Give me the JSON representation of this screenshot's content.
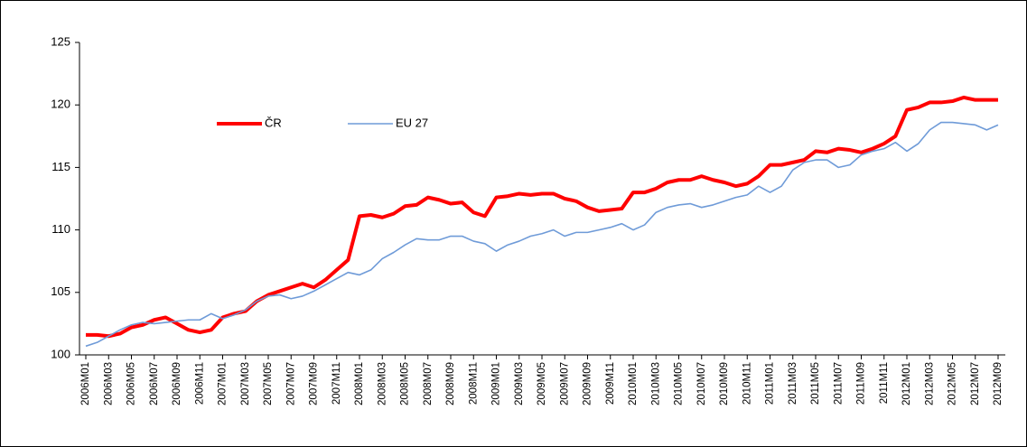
{
  "chart_data": {
    "type": "line",
    "categories": [
      "2006M01",
      null,
      "2006M03",
      null,
      "2006M05",
      null,
      "2006M07",
      null,
      "2006M09",
      null,
      "2006M11",
      null,
      "2007M01",
      null,
      "2007M03",
      null,
      "2007M05",
      null,
      "2007M07",
      null,
      "2007M09",
      null,
      "2007M11",
      null,
      "2008M01",
      null,
      "2008M03",
      null,
      "2008M05",
      null,
      "2008M07",
      null,
      "2008M09",
      null,
      "2008M11",
      null,
      "2009M01",
      null,
      "2009M03",
      null,
      "2009M05",
      null,
      "2009M07",
      null,
      "2009M09",
      null,
      "2009M11",
      null,
      "2010M01",
      null,
      "2010M03",
      null,
      "2010M05",
      null,
      "2010M07",
      null,
      "2010M09",
      null,
      "2010M11",
      null,
      "2011M01",
      null,
      "2011M03",
      null,
      "2011M05",
      null,
      "2011M07",
      null,
      "2011M09",
      null,
      "2011M11",
      null,
      "2012M01",
      null,
      "2012M03",
      null,
      "2012M05",
      null,
      "2012M07",
      null,
      "2012M09"
    ],
    "series": [
      {
        "name": "ČR",
        "color": "#ff0000",
        "width": 4,
        "values": [
          101.6,
          101.6,
          101.5,
          101.7,
          102.2,
          102.4,
          102.8,
          103.0,
          102.5,
          102.0,
          101.8,
          102.0,
          103.0,
          103.3,
          103.5,
          104.3,
          104.8,
          105.1,
          105.4,
          105.7,
          105.4,
          106.0,
          106.8,
          107.6,
          111.1,
          111.2,
          111.0,
          111.3,
          111.9,
          112.0,
          112.6,
          112.4,
          112.1,
          112.2,
          111.4,
          111.1,
          112.6,
          112.7,
          112.9,
          112.8,
          112.9,
          112.9,
          112.5,
          112.3,
          111.8,
          111.5,
          111.6,
          111.7,
          113.0,
          113.0,
          113.3,
          113.8,
          114.0,
          114.0,
          114.3,
          114.0,
          113.8,
          113.5,
          113.7,
          114.3,
          115.2,
          115.2,
          115.4,
          115.6,
          116.3,
          116.2,
          116.5,
          116.4,
          116.2,
          116.5,
          116.9,
          117.5,
          119.6,
          119.8,
          120.2,
          120.2,
          120.3,
          120.6,
          120.4,
          120.4,
          120.4
        ]
      },
      {
        "name": "EU 27",
        "color": "#6f9bd8",
        "width": 1.6,
        "values": [
          100.7,
          101.0,
          101.5,
          102.0,
          102.4,
          102.6,
          102.5,
          102.6,
          102.7,
          102.8,
          102.8,
          103.3,
          102.9,
          103.2,
          103.6,
          104.3,
          104.7,
          104.8,
          104.5,
          104.7,
          105.1,
          105.6,
          106.1,
          106.6,
          106.4,
          106.8,
          107.7,
          108.2,
          108.8,
          109.3,
          109.2,
          109.2,
          109.5,
          109.5,
          109.1,
          108.9,
          108.3,
          108.8,
          109.1,
          109.5,
          109.7,
          110.0,
          109.5,
          109.8,
          109.8,
          110.0,
          110.2,
          110.5,
          110.0,
          110.4,
          111.4,
          111.8,
          112.0,
          112.1,
          111.8,
          112.0,
          112.3,
          112.6,
          112.8,
          113.5,
          113.0,
          113.5,
          114.8,
          115.4,
          115.6,
          115.6,
          115.0,
          115.2,
          116.0,
          116.3,
          116.5,
          117.0,
          116.3,
          116.9,
          118.0,
          118.6,
          118.6,
          118.5,
          118.4,
          118.0,
          118.4
        ]
      }
    ],
    "ylim": [
      100,
      125
    ],
    "yticks": [
      100,
      105,
      110,
      115,
      120,
      125
    ],
    "grid": false,
    "legend": "upper left"
  }
}
